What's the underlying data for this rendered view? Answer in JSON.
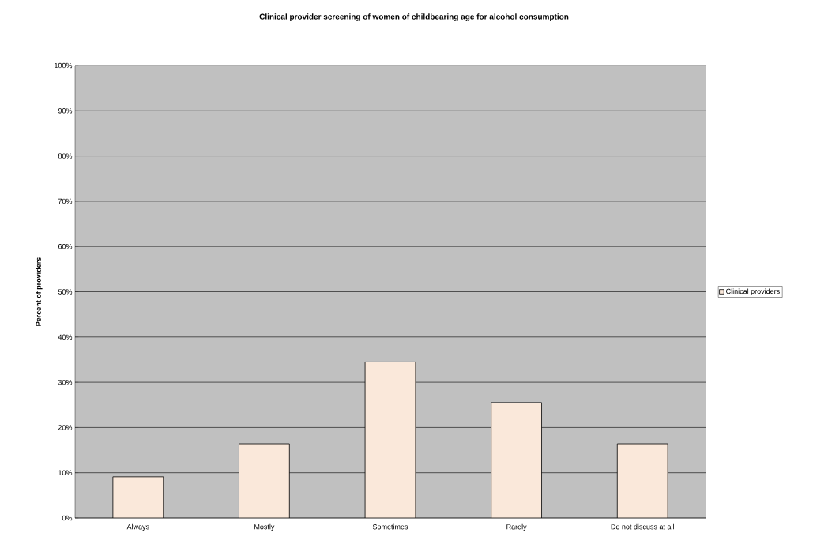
{
  "chart_data": {
    "type": "bar",
    "title": "Clinical provider screening of women of childbearing age for alcohol consumption",
    "ylabel": "Percent of providers",
    "categories": [
      "Always",
      "Mostly",
      "Sometimes",
      "Rarely",
      "Do not discuss at all"
    ],
    "series": [
      {
        "name": "Clinical providers",
        "color": "#fae8da",
        "values": [
          9.1,
          16.4,
          34.5,
          25.5,
          16.4
        ]
      }
    ],
    "ylim": [
      0,
      100
    ],
    "yticks": [
      {
        "value": 0,
        "label": "0%"
      },
      {
        "value": 10,
        "label": "10%"
      },
      {
        "value": 20,
        "label": "20%"
      },
      {
        "value": 30,
        "label": "30%"
      },
      {
        "value": 40,
        "label": "40%"
      },
      {
        "value": 50,
        "label": "50%"
      },
      {
        "value": 60,
        "label": "60%"
      },
      {
        "value": 70,
        "label": "70%"
      },
      {
        "value": 80,
        "label": "80%"
      },
      {
        "value": 90,
        "label": "90%"
      },
      {
        "value": 100,
        "label": "100%"
      }
    ],
    "grid": "y",
    "legend": "right"
  }
}
